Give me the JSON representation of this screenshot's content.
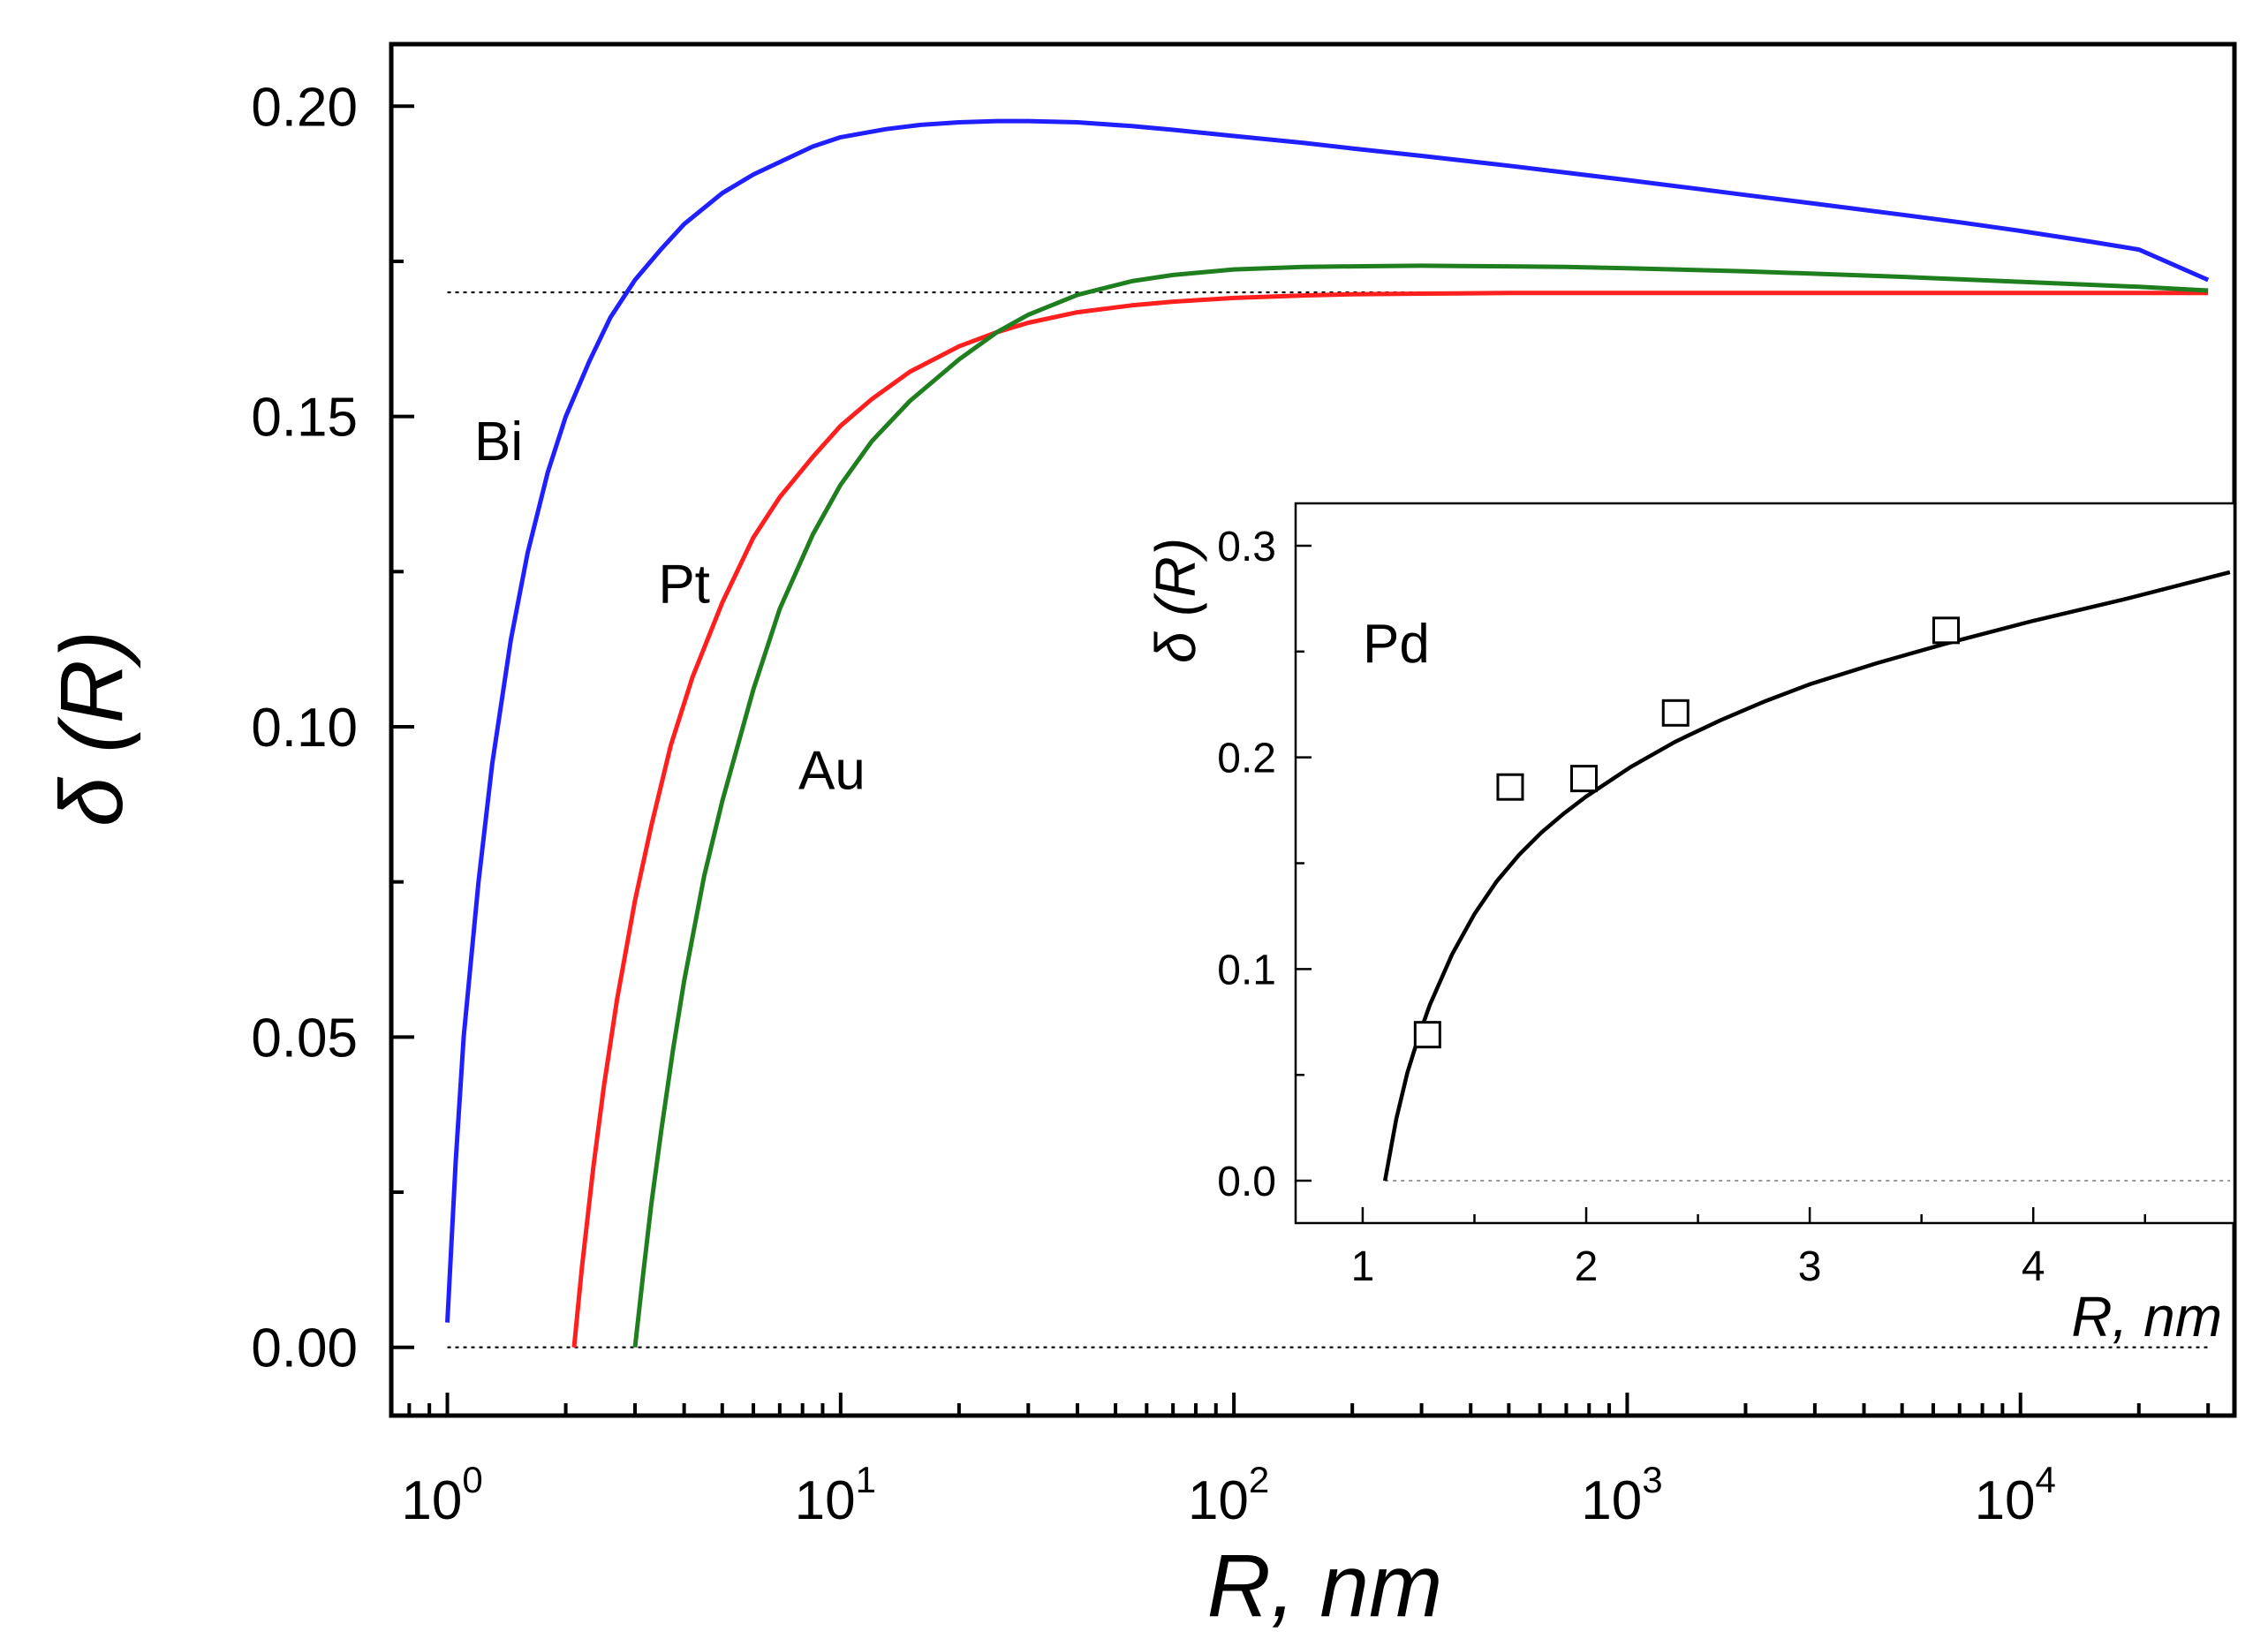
{
  "chart_data": [
    {
      "type": "line",
      "role": "main",
      "xscale": "log",
      "xlim": [
        0.72,
        35000
      ],
      "ylim": [
        -0.011,
        0.21
      ],
      "xlabel": "R, nm",
      "ylabel": "δ (R)",
      "x_ticks": [
        1,
        10,
        100,
        1000,
        10000
      ],
      "x_tick_labels": [
        {
          "base": "10",
          "exp": "0"
        },
        {
          "base": "10",
          "exp": "1"
        },
        {
          "base": "10",
          "exp": "2"
        },
        {
          "base": "10",
          "exp": "3"
        },
        {
          "base": "10",
          "exp": "4"
        }
      ],
      "y_ticks": [
        0.0,
        0.05,
        0.1,
        0.15,
        0.2
      ],
      "y_tick_labels": [
        "0.00",
        "0.05",
        "0.10",
        "0.15",
        "0.20"
      ],
      "y_minor_ticks": [
        0.025,
        0.075,
        0.125,
        0.175
      ],
      "reference_lines": [
        0.0,
        0.17
      ],
      "series": [
        {
          "name": "Bi",
          "label": "Bi",
          "color": "#1f1fff",
          "label_at": [
            1.35,
            0.143
          ],
          "x": [
            1.0,
            1.05,
            1.1,
            1.2,
            1.3,
            1.45,
            1.6,
            1.8,
            2.0,
            2.3,
            2.6,
            3.0,
            3.5,
            4.0,
            5.0,
            6.0,
            7.0,
            8.5,
            10,
            13,
            16,
            20,
            25,
            30,
            40,
            55,
            70,
            100,
            150,
            200,
            300,
            500,
            700,
            1000,
            1500,
            2000,
            3000,
            5000,
            7000,
            10000,
            15000,
            20000,
            30000
          ],
          "y": [
            0.004,
            0.03,
            0.05,
            0.075,
            0.094,
            0.114,
            0.128,
            0.141,
            0.15,
            0.159,
            0.166,
            0.172,
            0.177,
            0.181,
            0.186,
            0.189,
            0.191,
            0.1935,
            0.195,
            0.1963,
            0.197,
            0.1974,
            0.1976,
            0.1976,
            0.1974,
            0.1968,
            0.1962,
            0.1952,
            0.1941,
            0.1932,
            0.192,
            0.1904,
            0.1893,
            0.1881,
            0.1867,
            0.1857,
            0.1843,
            0.1825,
            0.1813,
            0.1799,
            0.1782,
            0.1769,
            0.172
          ]
        },
        {
          "name": "Pt",
          "label": "Pt",
          "color": "#ff1f1f",
          "label_at": [
            4.0,
            0.12
          ],
          "x": [
            2.1,
            2.2,
            2.35,
            2.5,
            2.7,
            3.0,
            3.3,
            3.7,
            4.2,
            5.0,
            6.0,
            7.0,
            8.5,
            10,
            12,
            15,
            20,
            25,
            30,
            40,
            55,
            70,
            100,
            150,
            200,
            300,
            500,
            700,
            1000,
            2000,
            5000,
            10000,
            30000
          ],
          "y": [
            0.0,
            0.013,
            0.029,
            0.042,
            0.056,
            0.072,
            0.084,
            0.097,
            0.108,
            0.12,
            0.1305,
            0.137,
            0.1435,
            0.1485,
            0.1528,
            0.1572,
            0.1613,
            0.1636,
            0.1651,
            0.1668,
            0.1679,
            0.1685,
            0.1691,
            0.1695,
            0.1697,
            0.1698,
            0.1699,
            0.1699,
            0.1699,
            0.1699,
            0.1699,
            0.1699,
            0.1699
          ]
        },
        {
          "name": "Au",
          "label": "Au",
          "color": "#1f7f1f",
          "label_at": [
            9.5,
            0.09
          ],
          "x": [
            3.0,
            3.15,
            3.3,
            3.5,
            3.75,
            4.0,
            4.5,
            5.0,
            6.0,
            7.0,
            8.5,
            10,
            12,
            15,
            20,
            25,
            30,
            40,
            55,
            70,
            100,
            150,
            200,
            300,
            500,
            700,
            1000,
            2000,
            5000,
            10000,
            20000,
            30000
          ],
          "y": [
            0.0,
            0.012,
            0.023,
            0.035,
            0.048,
            0.059,
            0.076,
            0.088,
            0.106,
            0.119,
            0.131,
            0.139,
            0.146,
            0.1525,
            0.1592,
            0.1636,
            0.1664,
            0.1696,
            0.1718,
            0.1728,
            0.1737,
            0.1741,
            0.1742,
            0.1743,
            0.1742,
            0.1741,
            0.1739,
            0.1734,
            0.1725,
            0.1717,
            0.1709,
            0.1703
          ]
        }
      ]
    },
    {
      "type": "line",
      "role": "inset",
      "xlim": [
        0.7,
        4.9
      ],
      "ylim": [
        -0.02,
        0.32
      ],
      "xlabel": "R, nm",
      "ylabel": "δ (R)",
      "x_ticks": [
        1,
        2,
        3,
        4
      ],
      "x_tick_labels": [
        "1",
        "2",
        "3",
        "4"
      ],
      "y_ticks": [
        0.0,
        0.1,
        0.2,
        0.3
      ],
      "y_tick_labels": [
        "0.0",
        "0.1",
        "0.2",
        "0.3"
      ],
      "y_minor_ticks": [
        0.05,
        0.15,
        0.25
      ],
      "reference_lines": [
        0.0
      ],
      "series": [
        {
          "name": "Pd",
          "label": "Pd",
          "color": "#000000",
          "label_at": [
            1.15,
            0.245
          ],
          "fit_x": [
            1.1,
            1.15,
            1.2,
            1.25,
            1.3,
            1.4,
            1.5,
            1.6,
            1.7,
            1.8,
            1.9,
            2.0,
            2.2,
            2.4,
            2.6,
            2.8,
            3.0,
            3.3,
            3.6,
            4.0,
            4.4,
            4.88
          ],
          "fit_y": [
            0.0,
            0.029,
            0.051,
            0.068,
            0.083,
            0.107,
            0.126,
            0.1415,
            0.154,
            0.1645,
            0.1735,
            0.1815,
            0.1955,
            0.2075,
            0.2175,
            0.2265,
            0.2345,
            0.2445,
            0.2535,
            0.2645,
            0.2745,
            0.2875
          ]
        },
        {
          "name": "Pd data",
          "marker": "open-square",
          "color": "#000000",
          "x": [
            1.29,
            1.66,
            1.99,
            2.4,
            3.61
          ],
          "y": [
            0.069,
            0.186,
            0.19,
            0.221,
            0.26
          ]
        }
      ]
    }
  ]
}
